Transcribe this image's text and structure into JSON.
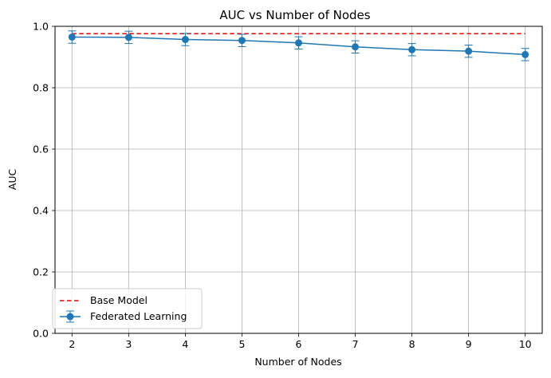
{
  "chart_data": {
    "type": "line",
    "title": "AUC vs Number of Nodes",
    "xlabel": "Number of Nodes",
    "ylabel": "AUC",
    "x": [
      2,
      3,
      4,
      5,
      6,
      7,
      8,
      9,
      10
    ],
    "xlim": [
      1.7,
      10.3
    ],
    "ylim": [
      0.0,
      1.0
    ],
    "x_ticks": [
      "2",
      "3",
      "4",
      "5",
      "6",
      "7",
      "8",
      "9",
      "10"
    ],
    "y_ticks": [
      "0.0",
      "0.2",
      "0.4",
      "0.6",
      "0.8",
      "1.0"
    ],
    "y_tick_values": [
      0.0,
      0.2,
      0.4,
      0.6,
      0.8,
      1.0
    ],
    "grid": true,
    "legend_position": "lower-left",
    "series": [
      {
        "name": "Base Model",
        "style": "dashed",
        "color": "#e60000",
        "values": [
          0.976,
          0.976,
          0.976,
          0.976,
          0.976,
          0.976,
          0.976,
          0.976,
          0.976
        ]
      },
      {
        "name": "Federated Learning",
        "style": "line-marker-errorbar",
        "color": "#1f77b4",
        "values": [
          0.965,
          0.964,
          0.957,
          0.954,
          0.946,
          0.933,
          0.924,
          0.919,
          0.908
        ],
        "error": [
          0.02,
          0.02,
          0.02,
          0.02,
          0.02,
          0.02,
          0.02,
          0.02,
          0.02
        ]
      }
    ]
  }
}
